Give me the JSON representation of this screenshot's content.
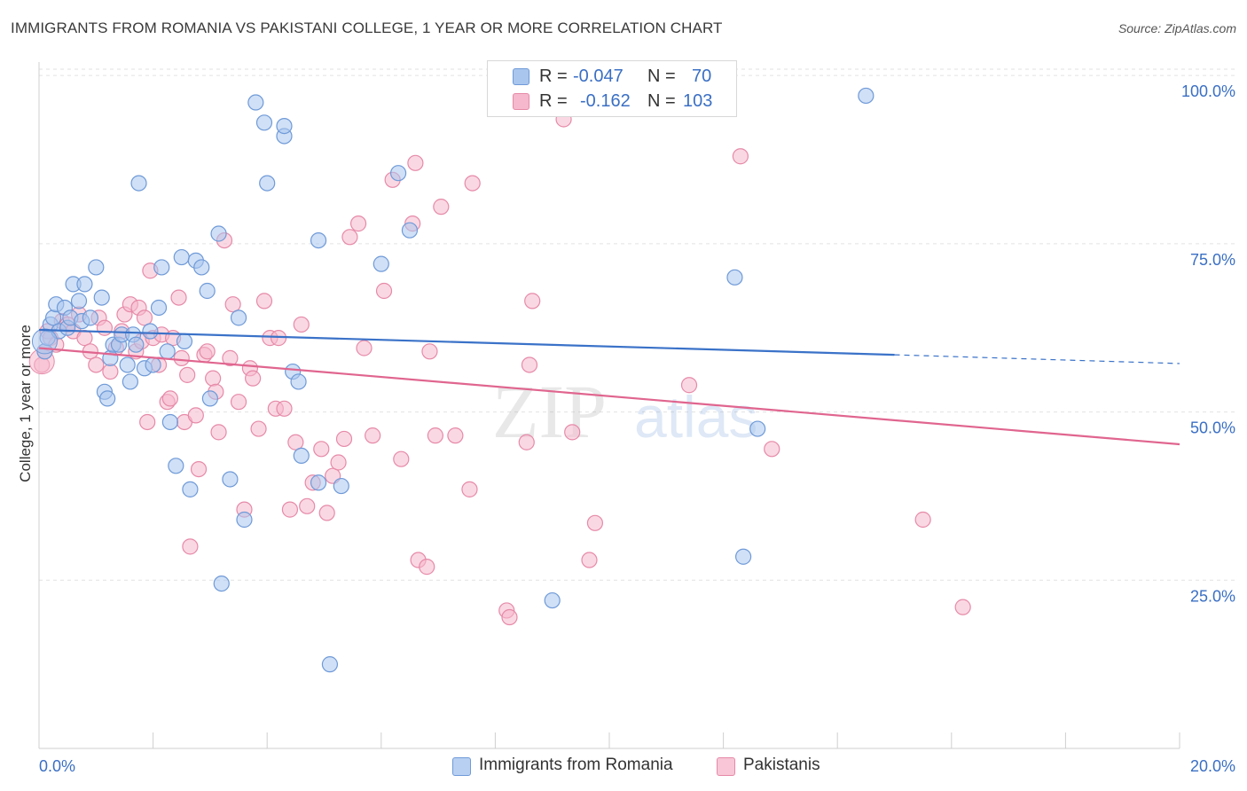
{
  "header": {
    "title": "IMMIGRANTS FROM ROMANIA VS PAKISTANI COLLEGE, 1 YEAR OR MORE CORRELATION CHART",
    "source": "Source: ZipAtlas.com"
  },
  "watermark": {
    "zip": "ZIP",
    "atlas": "atlas"
  },
  "stats_legend": {
    "rows": [
      {
        "r_label": "R =",
        "r_value": "-0.047",
        "n_label": "N =",
        "n_value": "70",
        "color": "#a9c6ef"
      },
      {
        "r_label": "R =",
        "r_value": "-0.162",
        "n_label": "N =",
        "n_value": "103",
        "color": "#f5b8cc"
      }
    ]
  },
  "bottom_legend": {
    "items": [
      {
        "label": "Immigrants from Romania",
        "color": "#b8d0f2"
      },
      {
        "label": "Pakistanis",
        "color": "#f8c6d6"
      }
    ]
  },
  "colors": {
    "blue_fill": "#a9c6ef",
    "blue_stroke": "#6f9ad8",
    "blue_line": "#3a72c8",
    "pink_fill": "#f5b8cc",
    "pink_stroke": "#e68aa8",
    "pink_line": "#e0658f",
    "tick_label": "#3a6fc4",
    "grid": "#e2e2e2"
  },
  "chart_data": {
    "type": "scatter",
    "title": "IMMIGRANTS FROM ROMANIA VS PAKISTANI COLLEGE, 1 YEAR OR MORE CORRELATION CHART",
    "xlabel": "",
    "ylabel": "College, 1 year or more",
    "xlim": [
      0,
      20
    ],
    "ylim": [
      0,
      102
    ],
    "x_ticks": [
      0,
      2,
      4,
      6,
      8,
      10,
      12,
      14,
      16,
      18,
      20
    ],
    "x_tick_labels": {
      "0": "0.0%",
      "20": "20.0%"
    },
    "y_ticks": [
      25,
      50,
      75,
      100
    ],
    "y_tick_labels": [
      "25.0%",
      "50.0%",
      "75.0%",
      "100.0%"
    ],
    "grid": "horizontal dashed",
    "legend_position": "top-center",
    "series": [
      {
        "name": "Immigrants from Romania",
        "color": "#a9c6ef",
        "trend": {
          "x": [
            0,
            15
          ],
          "y": [
            62.2,
            58.5
          ],
          "dashed_to": [
            20,
            57.2
          ]
        },
        "points": [
          [
            0.1,
            59
          ],
          [
            0.15,
            61
          ],
          [
            0.2,
            63
          ],
          [
            0.25,
            64
          ],
          [
            0.3,
            66
          ],
          [
            0.35,
            62
          ],
          [
            0.45,
            65.5
          ],
          [
            0.5,
            62.5
          ],
          [
            0.55,
            64
          ],
          [
            0.6,
            69
          ],
          [
            0.7,
            66.5
          ],
          [
            0.75,
            63.5
          ],
          [
            0.8,
            69
          ],
          [
            0.9,
            64
          ],
          [
            1.0,
            71.5
          ],
          [
            1.1,
            67
          ],
          [
            1.15,
            53
          ],
          [
            1.2,
            52
          ],
          [
            1.25,
            58
          ],
          [
            1.3,
            60
          ],
          [
            1.4,
            60
          ],
          [
            1.45,
            61.5
          ],
          [
            1.55,
            57
          ],
          [
            1.6,
            54.5
          ],
          [
            1.65,
            61.5
          ],
          [
            1.7,
            60
          ],
          [
            1.75,
            84
          ],
          [
            1.85,
            56.5
          ],
          [
            1.95,
            62
          ],
          [
            2.0,
            57
          ],
          [
            2.1,
            65.5
          ],
          [
            2.15,
            71.5
          ],
          [
            2.25,
            59
          ],
          [
            2.3,
            48.5
          ],
          [
            2.4,
            42
          ],
          [
            2.5,
            73
          ],
          [
            2.55,
            60.5
          ],
          [
            2.65,
            38.5
          ],
          [
            2.75,
            72.5
          ],
          [
            2.85,
            71.5
          ],
          [
            2.95,
            68
          ],
          [
            3.0,
            52
          ],
          [
            3.15,
            76.5
          ],
          [
            3.2,
            24.5
          ],
          [
            3.35,
            40
          ],
          [
            3.5,
            64
          ],
          [
            3.6,
            34
          ],
          [
            3.8,
            96
          ],
          [
            3.95,
            93
          ],
          [
            4.0,
            84
          ],
          [
            4.3,
            91
          ],
          [
            4.3,
            92.5
          ],
          [
            4.45,
            56
          ],
          [
            4.55,
            54.5
          ],
          [
            4.6,
            43.5
          ],
          [
            4.9,
            75.5
          ],
          [
            4.9,
            39.5
          ],
          [
            5.1,
            12.5
          ],
          [
            5.3,
            39
          ],
          [
            6.0,
            72
          ],
          [
            6.3,
            85.5
          ],
          [
            6.5,
            77
          ],
          [
            9.0,
            22
          ],
          [
            12.2,
            70
          ],
          [
            12.35,
            28.5
          ],
          [
            12.6,
            47.5
          ],
          [
            14.5,
            97
          ]
        ]
      },
      {
        "name": "Pakistanis",
        "color": "#f5b8cc",
        "trend": {
          "x": [
            0,
            20
          ],
          "y": [
            59.5,
            45.2
          ]
        },
        "points": [
          [
            0.05,
            57
          ],
          [
            0.1,
            59
          ],
          [
            0.15,
            62
          ],
          [
            0.2,
            61
          ],
          [
            0.3,
            60
          ],
          [
            0.4,
            63.5
          ],
          [
            0.5,
            63
          ],
          [
            0.6,
            62
          ],
          [
            0.7,
            64.5
          ],
          [
            0.8,
            61
          ],
          [
            0.9,
            59
          ],
          [
            1.0,
            57
          ],
          [
            1.05,
            64
          ],
          [
            1.15,
            62.5
          ],
          [
            1.25,
            56
          ],
          [
            1.35,
            59.5
          ],
          [
            1.45,
            62
          ],
          [
            1.5,
            64.5
          ],
          [
            1.6,
            66
          ],
          [
            1.7,
            59
          ],
          [
            1.75,
            65.5
          ],
          [
            1.8,
            60.5
          ],
          [
            1.85,
            64
          ],
          [
            1.9,
            48.5
          ],
          [
            1.95,
            71
          ],
          [
            2.0,
            61
          ],
          [
            2.1,
            57
          ],
          [
            2.15,
            61.5
          ],
          [
            2.25,
            51.5
          ],
          [
            2.3,
            52
          ],
          [
            2.35,
            61
          ],
          [
            2.45,
            67
          ],
          [
            2.5,
            58
          ],
          [
            2.55,
            48.5
          ],
          [
            2.6,
            55.5
          ],
          [
            2.65,
            30
          ],
          [
            2.75,
            49.5
          ],
          [
            2.8,
            41.5
          ],
          [
            2.9,
            58.5
          ],
          [
            2.95,
            59
          ],
          [
            3.05,
            55
          ],
          [
            3.1,
            53
          ],
          [
            3.15,
            47
          ],
          [
            3.25,
            75.5
          ],
          [
            3.35,
            58
          ],
          [
            3.4,
            66
          ],
          [
            3.5,
            51.5
          ],
          [
            3.6,
            35.5
          ],
          [
            3.7,
            56.5
          ],
          [
            3.75,
            55
          ],
          [
            3.85,
            47.5
          ],
          [
            3.95,
            66.5
          ],
          [
            4.05,
            61
          ],
          [
            4.15,
            50.5
          ],
          [
            4.2,
            61
          ],
          [
            4.3,
            50.5
          ],
          [
            4.4,
            35.5
          ],
          [
            4.5,
            45.5
          ],
          [
            4.6,
            63
          ],
          [
            4.7,
            36
          ],
          [
            4.8,
            39.5
          ],
          [
            4.95,
            44.5
          ],
          [
            5.05,
            35
          ],
          [
            5.15,
            40.5
          ],
          [
            5.25,
            42.5
          ],
          [
            5.35,
            46
          ],
          [
            5.45,
            76
          ],
          [
            5.6,
            78
          ],
          [
            5.7,
            59.5
          ],
          [
            5.85,
            46.5
          ],
          [
            6.05,
            68
          ],
          [
            6.2,
            84.5
          ],
          [
            6.35,
            43
          ],
          [
            6.55,
            78
          ],
          [
            6.6,
            87
          ],
          [
            6.65,
            28
          ],
          [
            6.8,
            27
          ],
          [
            6.85,
            59
          ],
          [
            6.95,
            46.5
          ],
          [
            7.05,
            80.5
          ],
          [
            7.3,
            46.5
          ],
          [
            7.55,
            38.5
          ],
          [
            7.6,
            84
          ],
          [
            8.2,
            20.5
          ],
          [
            8.25,
            19.5
          ],
          [
            8.55,
            45.5
          ],
          [
            8.6,
            57
          ],
          [
            8.65,
            66.5
          ],
          [
            9.2,
            93.5
          ],
          [
            9.35,
            47
          ],
          [
            9.65,
            28
          ],
          [
            9.75,
            33.5
          ],
          [
            11.4,
            54
          ],
          [
            12.3,
            88
          ],
          [
            12.85,
            44.5
          ],
          [
            15.5,
            34
          ],
          [
            16.2,
            21
          ]
        ]
      }
    ]
  }
}
